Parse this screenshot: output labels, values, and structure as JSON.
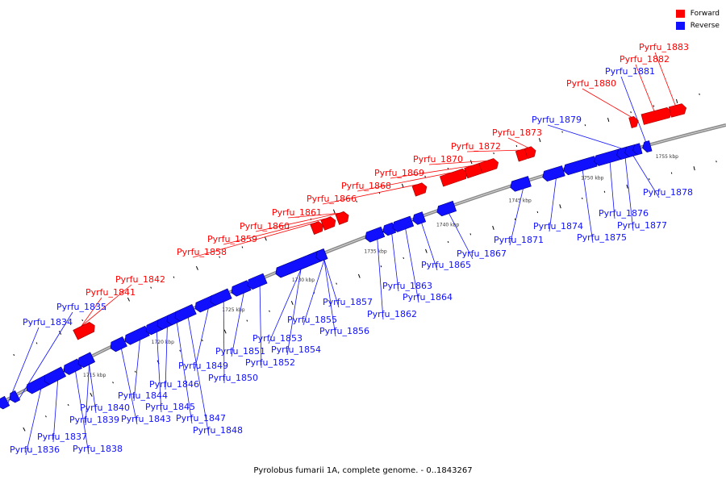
{
  "legend": {
    "forward_label": "Forward",
    "reverse_label": "Reverse",
    "forward_color": "#ff0000",
    "reverse_color": "#1010ff"
  },
  "caption": "Pyrolobus fumarii 1A, complete genome. - 0..1843267",
  "scale_marks": [
    "1715 kbp",
    "1720 kbp",
    "1725 kbp",
    "1730 kbp",
    "1735 kbp",
    "1740 kbp",
    "1745 kbp",
    "1750 kbp",
    "1755 kbp"
  ],
  "genes": [
    {
      "name": "Pyrfu_1834",
      "strand": "reverse"
    },
    {
      "name": "Pyrfu_1835",
      "strand": "reverse"
    },
    {
      "name": "Pyrfu_1836",
      "strand": "reverse"
    },
    {
      "name": "Pyrfu_1837",
      "strand": "reverse"
    },
    {
      "name": "Pyrfu_1838",
      "strand": "reverse"
    },
    {
      "name": "Pyrfu_1839",
      "strand": "reverse"
    },
    {
      "name": "Pyrfu_1840",
      "strand": "reverse"
    },
    {
      "name": "Pyrfu_1841",
      "strand": "forward"
    },
    {
      "name": "Pyrfu_1842",
      "strand": "forward"
    },
    {
      "name": "Pyrfu_1843",
      "strand": "reverse"
    },
    {
      "name": "Pyrfu_1844",
      "strand": "reverse"
    },
    {
      "name": "Pyrfu_1845",
      "strand": "reverse"
    },
    {
      "name": "Pyrfu_1846",
      "strand": "reverse"
    },
    {
      "name": "Pyrfu_1847",
      "strand": "reverse"
    },
    {
      "name": "Pyrfu_1848",
      "strand": "reverse"
    },
    {
      "name": "Pyrfu_1849",
      "strand": "reverse"
    },
    {
      "name": "Pyrfu_1850",
      "strand": "reverse"
    },
    {
      "name": "Pyrfu_1851",
      "strand": "reverse"
    },
    {
      "name": "Pyrfu_1852",
      "strand": "reverse"
    },
    {
      "name": "Pyrfu_1853",
      "strand": "reverse"
    },
    {
      "name": "Pyrfu_1854",
      "strand": "reverse"
    },
    {
      "name": "Pyrfu_1855",
      "strand": "reverse"
    },
    {
      "name": "Pyrfu_1856",
      "strand": "reverse"
    },
    {
      "name": "Pyrfu_1857",
      "strand": "reverse"
    },
    {
      "name": "Pyrfu_1858",
      "strand": "forward"
    },
    {
      "name": "Pyrfu_1859",
      "strand": "forward"
    },
    {
      "name": "Pyrfu_1860",
      "strand": "forward"
    },
    {
      "name": "Pyrfu_1861",
      "strand": "forward"
    },
    {
      "name": "Pyrfu_1862",
      "strand": "reverse"
    },
    {
      "name": "Pyrfu_1863",
      "strand": "reverse"
    },
    {
      "name": "Pyrfu_1864",
      "strand": "reverse"
    },
    {
      "name": "Pyrfu_1865",
      "strand": "reverse"
    },
    {
      "name": "Pyrfu_1866",
      "strand": "forward"
    },
    {
      "name": "Pyrfu_1867",
      "strand": "reverse"
    },
    {
      "name": "Pyrfu_1868",
      "strand": "forward"
    },
    {
      "name": "Pyrfu_1869",
      "strand": "forward"
    },
    {
      "name": "Pyrfu_1870",
      "strand": "forward"
    },
    {
      "name": "Pyrfu_1871",
      "strand": "reverse"
    },
    {
      "name": "Pyrfu_1872",
      "strand": "forward"
    },
    {
      "name": "Pyrfu_1873",
      "strand": "forward"
    },
    {
      "name": "Pyrfu_1874",
      "strand": "reverse"
    },
    {
      "name": "Pyrfu_1875",
      "strand": "reverse"
    },
    {
      "name": "Pyrfu_1876",
      "strand": "reverse"
    },
    {
      "name": "Pyrfu_1877",
      "strand": "reverse"
    },
    {
      "name": "Pyrfu_1878",
      "strand": "reverse"
    },
    {
      "name": "Pyrfu_1879",
      "strand": "reverse"
    },
    {
      "name": "Pyrfu_1880",
      "strand": "forward"
    },
    {
      "name": "Pyrfu_1881",
      "strand": "reverse"
    },
    {
      "name": "Pyrfu_1882",
      "strand": "forward"
    },
    {
      "name": "Pyrfu_1883",
      "strand": "forward"
    }
  ]
}
